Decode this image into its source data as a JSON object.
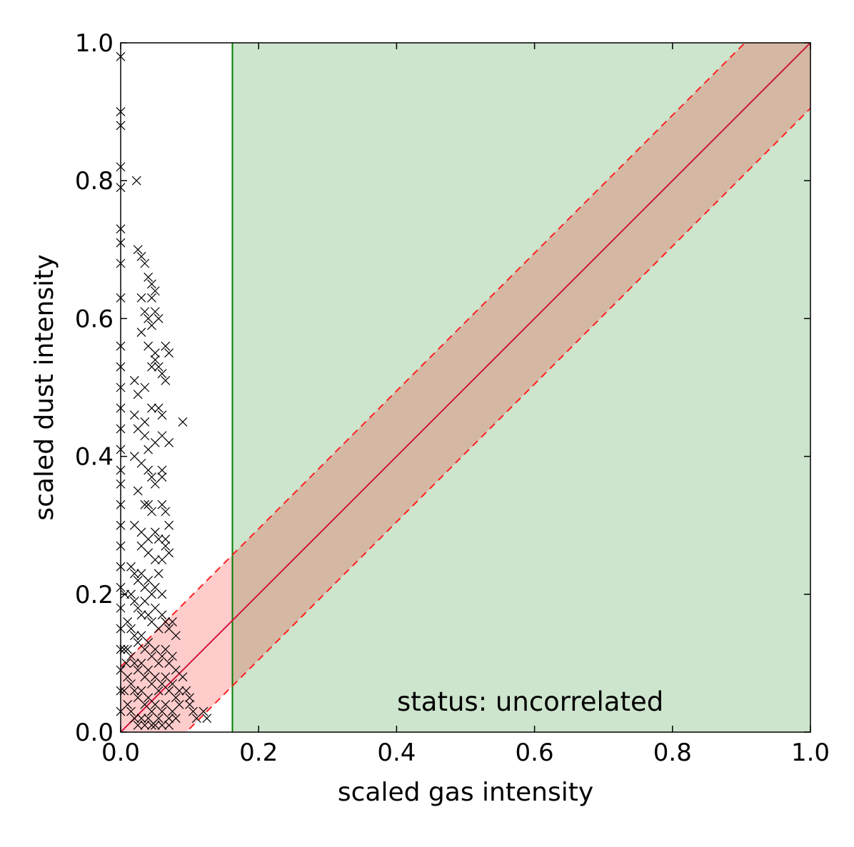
{
  "chart_data": {
    "type": "scatter",
    "xlabel": "scaled gas intensity",
    "ylabel": "scaled dust intensity",
    "xlim": [
      0.0,
      1.0
    ],
    "ylim": [
      0.0,
      1.0
    ],
    "xticks": [
      "0.0",
      "0.2",
      "0.4",
      "0.6",
      "0.8",
      "1.0"
    ],
    "yticks": [
      "0.0",
      "0.2",
      "0.4",
      "0.6",
      "0.8",
      "1.0"
    ],
    "xtick_values": [
      0.0,
      0.2,
      0.4,
      0.6,
      0.8,
      1.0
    ],
    "ytick_values": [
      0.0,
      0.2,
      0.4,
      0.6,
      0.8,
      1.0
    ],
    "annotation": "status: uncorrelated",
    "grid": false,
    "threshold_x": 0.162,
    "fit_line": {
      "slope": 1.0,
      "intercept": 0.0
    },
    "band_half_width": 0.095,
    "colors": {
      "threshold_region": "#cde4cd",
      "threshold_line": "#008000",
      "band_fill": "#ffcccc",
      "band_overlap": "#d4b8a4",
      "fit_line": "#d0143c",
      "band_edge": "#ff2020",
      "points": "#000000"
    },
    "points": [
      [
        0.0,
        0.98
      ],
      [
        0.0,
        0.9
      ],
      [
        0.0,
        0.88
      ],
      [
        0.0,
        0.82
      ],
      [
        0.0,
        0.79
      ],
      [
        0.0,
        0.73
      ],
      [
        0.0,
        0.71
      ],
      [
        0.0,
        0.68
      ],
      [
        0.0,
        0.63
      ],
      [
        0.0,
        0.56
      ],
      [
        0.0,
        0.53
      ],
      [
        0.0,
        0.5
      ],
      [
        0.0,
        0.47
      ],
      [
        0.0,
        0.44
      ],
      [
        0.0,
        0.41
      ],
      [
        0.0,
        0.38
      ],
      [
        0.0,
        0.36
      ],
      [
        0.0,
        0.33
      ],
      [
        0.0,
        0.3
      ],
      [
        0.0,
        0.27
      ],
      [
        0.0,
        0.24
      ],
      [
        0.0,
        0.21
      ],
      [
        0.0,
        0.18
      ],
      [
        0.0,
        0.15
      ],
      [
        0.0,
        0.12
      ],
      [
        0.0,
        0.09
      ],
      [
        0.0,
        0.06
      ],
      [
        0.0,
        0.03
      ],
      [
        0.005,
        0.12
      ],
      [
        0.005,
        0.06
      ],
      [
        0.006,
        0.2
      ],
      [
        0.008,
        0.1
      ],
      [
        0.023,
        0.8
      ],
      [
        0.025,
        0.7
      ],
      [
        0.03,
        0.69
      ],
      [
        0.035,
        0.68
      ],
      [
        0.04,
        0.66
      ],
      [
        0.045,
        0.65
      ],
      [
        0.045,
        0.63
      ],
      [
        0.05,
        0.64
      ],
      [
        0.03,
        0.63
      ],
      [
        0.035,
        0.61
      ],
      [
        0.04,
        0.6
      ],
      [
        0.045,
        0.59
      ],
      [
        0.05,
        0.61
      ],
      [
        0.055,
        0.6
      ],
      [
        0.03,
        0.58
      ],
      [
        0.04,
        0.56
      ],
      [
        0.05,
        0.55
      ],
      [
        0.065,
        0.56
      ],
      [
        0.045,
        0.53
      ],
      [
        0.05,
        0.54
      ],
      [
        0.055,
        0.53
      ],
      [
        0.06,
        0.52
      ],
      [
        0.065,
        0.51
      ],
      [
        0.07,
        0.55
      ],
      [
        0.02,
        0.51
      ],
      [
        0.025,
        0.49
      ],
      [
        0.035,
        0.5
      ],
      [
        0.045,
        0.47
      ],
      [
        0.055,
        0.47
      ],
      [
        0.06,
        0.46
      ],
      [
        0.09,
        0.45
      ],
      [
        0.02,
        0.46
      ],
      [
        0.025,
        0.44
      ],
      [
        0.035,
        0.45
      ],
      [
        0.035,
        0.43
      ],
      [
        0.04,
        0.41
      ],
      [
        0.05,
        0.42
      ],
      [
        0.06,
        0.43
      ],
      [
        0.07,
        0.42
      ],
      [
        0.02,
        0.4
      ],
      [
        0.03,
        0.39
      ],
      [
        0.04,
        0.38
      ],
      [
        0.045,
        0.37
      ],
      [
        0.05,
        0.36
      ],
      [
        0.06,
        0.38
      ],
      [
        0.06,
        0.37
      ],
      [
        0.025,
        0.35
      ],
      [
        0.035,
        0.33
      ],
      [
        0.04,
        0.33
      ],
      [
        0.045,
        0.32
      ],
      [
        0.06,
        0.33
      ],
      [
        0.065,
        0.32
      ],
      [
        0.02,
        0.3
      ],
      [
        0.03,
        0.29
      ],
      [
        0.04,
        0.28
      ],
      [
        0.05,
        0.29
      ],
      [
        0.055,
        0.28
      ],
      [
        0.065,
        0.28
      ],
      [
        0.07,
        0.3
      ],
      [
        0.03,
        0.27
      ],
      [
        0.04,
        0.26
      ],
      [
        0.05,
        0.25
      ],
      [
        0.06,
        0.25
      ],
      [
        0.065,
        0.27
      ],
      [
        0.07,
        0.26
      ],
      [
        0.015,
        0.24
      ],
      [
        0.02,
        0.23
      ],
      [
        0.025,
        0.22
      ],
      [
        0.03,
        0.23
      ],
      [
        0.035,
        0.21
      ],
      [
        0.04,
        0.22
      ],
      [
        0.045,
        0.2
      ],
      [
        0.05,
        0.21
      ],
      [
        0.055,
        0.23
      ],
      [
        0.06,
        0.2
      ],
      [
        0.015,
        0.2
      ],
      [
        0.02,
        0.19
      ],
      [
        0.025,
        0.18
      ],
      [
        0.03,
        0.17
      ],
      [
        0.035,
        0.19
      ],
      [
        0.04,
        0.17
      ],
      [
        0.045,
        0.16
      ],
      [
        0.05,
        0.18
      ],
      [
        0.055,
        0.15
      ],
      [
        0.06,
        0.17
      ],
      [
        0.065,
        0.16
      ],
      [
        0.07,
        0.15
      ],
      [
        0.075,
        0.16
      ],
      [
        0.08,
        0.14
      ],
      [
        0.01,
        0.16
      ],
      [
        0.015,
        0.15
      ],
      [
        0.02,
        0.14
      ],
      [
        0.025,
        0.13
      ],
      [
        0.03,
        0.14
      ],
      [
        0.035,
        0.12
      ],
      [
        0.04,
        0.13
      ],
      [
        0.045,
        0.11
      ],
      [
        0.05,
        0.12
      ],
      [
        0.055,
        0.1
      ],
      [
        0.06,
        0.11
      ],
      [
        0.065,
        0.12
      ],
      [
        0.07,
        0.1
      ],
      [
        0.075,
        0.11
      ],
      [
        0.08,
        0.09
      ],
      [
        0.01,
        0.12
      ],
      [
        0.015,
        0.11
      ],
      [
        0.02,
        0.1
      ],
      [
        0.025,
        0.09
      ],
      [
        0.03,
        0.1
      ],
      [
        0.035,
        0.08
      ],
      [
        0.04,
        0.09
      ],
      [
        0.045,
        0.07
      ],
      [
        0.05,
        0.08
      ],
      [
        0.055,
        0.06
      ],
      [
        0.06,
        0.07
      ],
      [
        0.065,
        0.08
      ],
      [
        0.07,
        0.06
      ],
      [
        0.075,
        0.07
      ],
      [
        0.08,
        0.05
      ],
      [
        0.085,
        0.06
      ],
      [
        0.01,
        0.08
      ],
      [
        0.015,
        0.07
      ],
      [
        0.02,
        0.06
      ],
      [
        0.025,
        0.05
      ],
      [
        0.03,
        0.06
      ],
      [
        0.035,
        0.04
      ],
      [
        0.04,
        0.05
      ],
      [
        0.045,
        0.03
      ],
      [
        0.05,
        0.04
      ],
      [
        0.055,
        0.02
      ],
      [
        0.06,
        0.03
      ],
      [
        0.065,
        0.04
      ],
      [
        0.07,
        0.02
      ],
      [
        0.075,
        0.03
      ],
      [
        0.08,
        0.02
      ],
      [
        0.01,
        0.04
      ],
      [
        0.015,
        0.03
      ],
      [
        0.02,
        0.02
      ],
      [
        0.025,
        0.01
      ],
      [
        0.03,
        0.02
      ],
      [
        0.035,
        0.01
      ],
      [
        0.04,
        0.02
      ],
      [
        0.045,
        0.01
      ],
      [
        0.05,
        0.01
      ],
      [
        0.06,
        0.01
      ],
      [
        0.07,
        0.01
      ],
      [
        0.1,
        0.04
      ],
      [
        0.105,
        0.03
      ],
      [
        0.11,
        0.02
      ],
      [
        0.12,
        0.03
      ],
      [
        0.125,
        0.02
      ],
      [
        0.095,
        0.06
      ],
      [
        0.1,
        0.05
      ],
      [
        0.09,
        0.08
      ],
      [
        0.085,
        0.04
      ]
    ]
  }
}
